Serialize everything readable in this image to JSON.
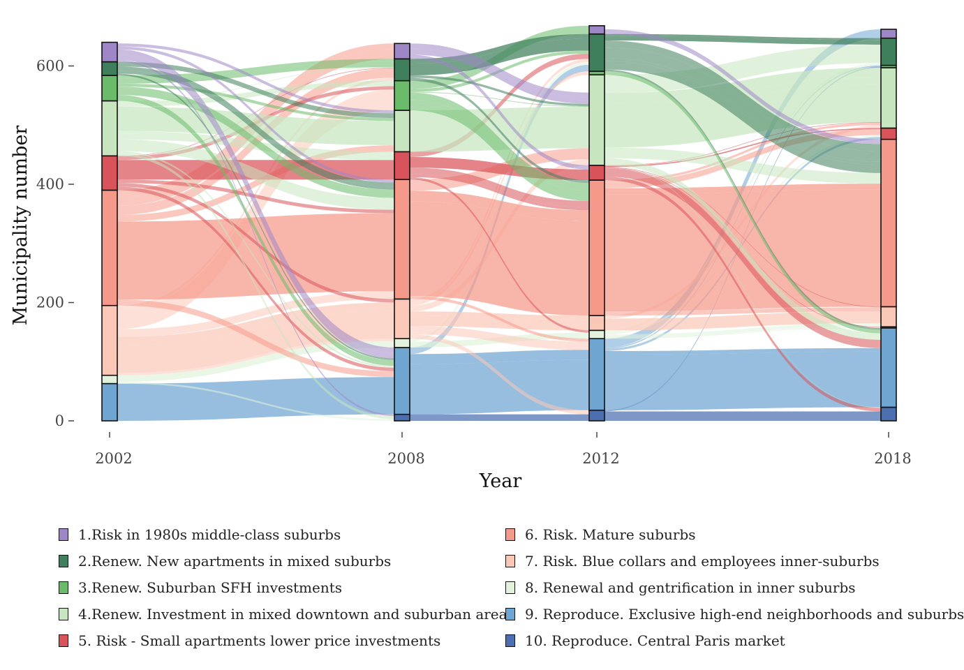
{
  "chart_data": {
    "type": "alluvial",
    "title": "",
    "xlabel": "Year",
    "ylabel": "Municipality number",
    "x_ticks": [
      "2002",
      "2008",
      "2012",
      "2018"
    ],
    "y_ticks": [
      0,
      200,
      400,
      600
    ],
    "ylim": [
      0,
      660
    ],
    "grid": false,
    "legend_position": "bottom",
    "categories": [
      {
        "id": 1,
        "label": "1.Risk in 1980s middle-class suburbs",
        "color": "#9e86c7"
      },
      {
        "id": 2,
        "label": "2.Renew. New apartments in mixed suburbs",
        "color": "#3f7f5c"
      },
      {
        "id": 3,
        "label": "3.Renew. Suburban SFH investments",
        "color": "#6abb6a"
      },
      {
        "id": 4,
        "label": "4.Renew. Investment in mixed downtown and suburban areas",
        "color": "#c7e6c0"
      },
      {
        "id": 5,
        "label": "5. Risk - Small apartments lower price investments",
        "color": "#d9535a"
      },
      {
        "id": 6,
        "label": "6. Risk. Mature suburbs",
        "color": "#f59a8a"
      },
      {
        "id": 7,
        "label": "7. Risk. Blue collars and employees inner-suburbs",
        "color": "#fbc8b8"
      },
      {
        "id": 8,
        "label": "8. Renewal and gentrification in inner suburbs",
        "color": "#e2f2dc"
      },
      {
        "id": 9,
        "label": "9. Reproduce. Exclusive high-end neighborhoods and suburbs",
        "color": "#6fa5d1"
      },
      {
        "id": 10,
        "label": "10. Reproduce. Central Paris market",
        "color": "#4b6fb0"
      }
    ],
    "stack_order_bottom_to_top": [
      10,
      9,
      8,
      7,
      6,
      5,
      4,
      3,
      2,
      1
    ],
    "series": [
      {
        "name": "2002",
        "values": [
          33,
          23,
          43,
          93,
          58,
          195,
          118,
          14,
          63,
          0
        ]
      },
      {
        "name": "2008",
        "values": [
          26,
          37,
          50,
          70,
          47,
          202,
          67,
          15,
          113,
          11
        ]
      },
      {
        "name": "2012",
        "values": [
          14,
          63,
          6,
          153,
          25,
          229,
          25,
          14,
          121,
          18
        ]
      },
      {
        "name": "2018",
        "values": [
          15,
          46,
          4,
          102,
          19,
          283,
          34,
          2,
          134,
          23
        ]
      }
    ]
  }
}
